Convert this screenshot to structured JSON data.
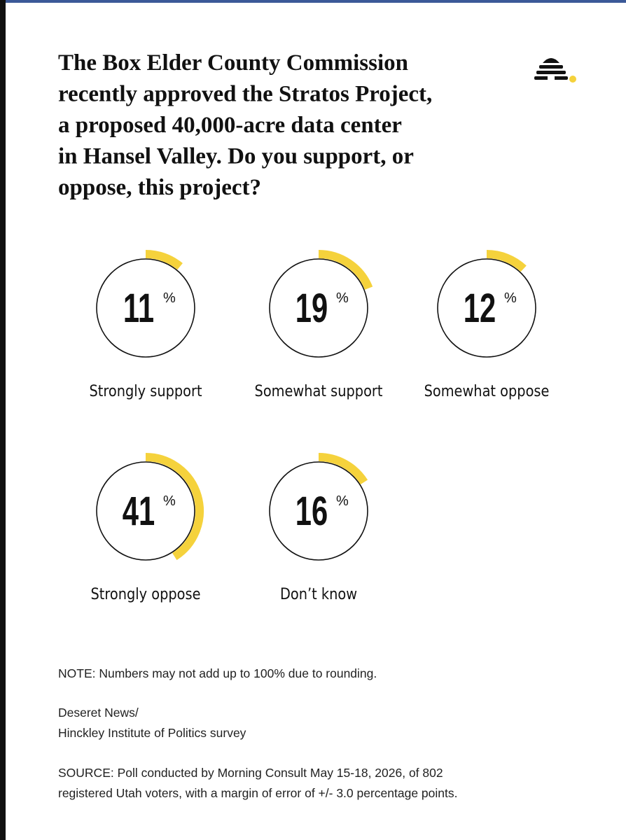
{
  "chart_data": {
    "type": "radial",
    "title": [
      "The Box Elder County Commission",
      "recently approved the Stratos Project,",
      "a proposed 40,000-acre data center",
      "in Hansel Valley. Do you support, or",
      "oppose, this project?"
    ],
    "categories": [
      "Strongly support",
      "Somewhat support",
      "Somewhat oppose",
      "Strongly oppose",
      "Don’t know"
    ],
    "values": [
      11,
      19,
      12,
      41,
      16
    ],
    "unit": "%",
    "color": "#f5d23c",
    "note": "NOTE: Numbers may not add up to 100% due to rounding.",
    "credit": [
      "Deseret News/",
      "Hinckley Institute of Politics survey"
    ],
    "source": [
      "SOURCE: Poll conducted by Morning Consult May 15-18, 2026, of 802",
      "registered Utah voters, with a margin of error of +/- 3.0 percentage points."
    ]
  }
}
